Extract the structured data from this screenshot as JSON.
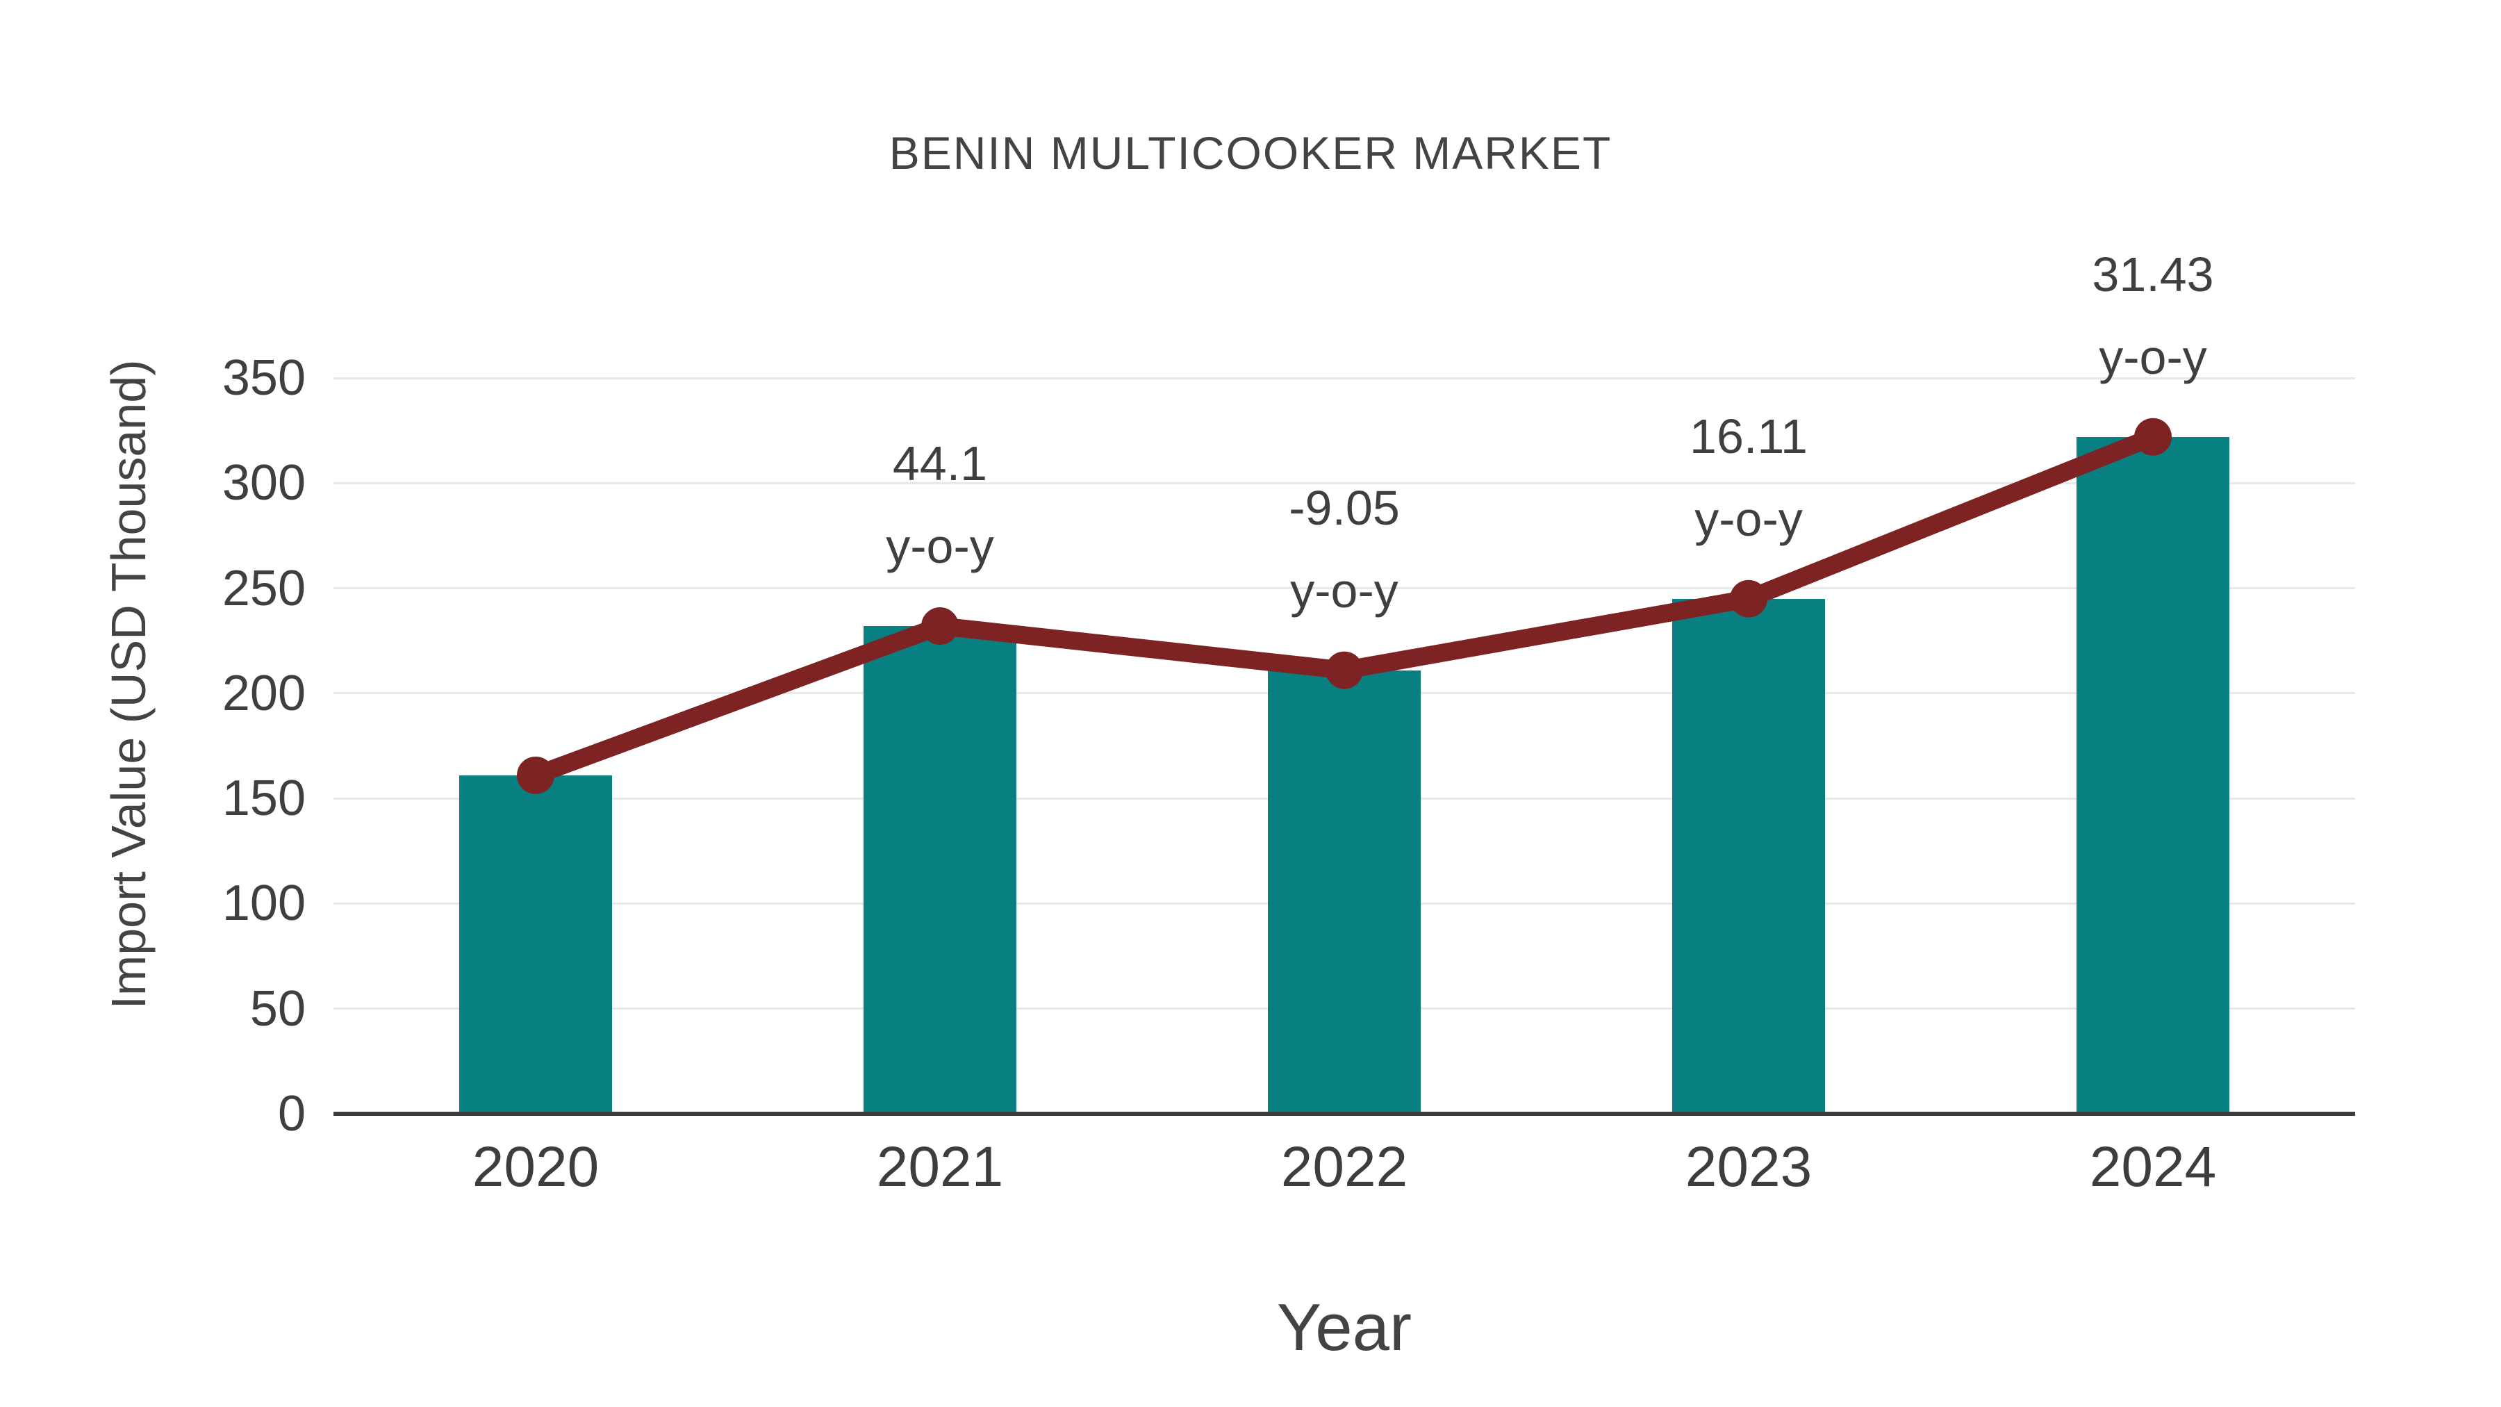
{
  "page": {
    "background_color": "#ffffff"
  },
  "chart_data": {
    "type": "bar",
    "title": "BENIN MULTICOOKER MARKET",
    "xlabel": "Year",
    "ylabel": "Import Value (USD Thousand)",
    "categories": [
      "2020",
      "2021",
      "2022",
      "2023",
      "2024"
    ],
    "series": [
      {
        "name": "Import Value (USD Thousand)",
        "type": "bar",
        "values": [
          161,
          232,
          211,
          245,
          322
        ],
        "color": "#088081"
      },
      {
        "name": "Import Value trend line",
        "type": "line",
        "values": [
          161,
          232,
          211,
          245,
          322
        ],
        "color": "#7d2323",
        "marker": "circle"
      }
    ],
    "annotations": [
      {
        "category": "2021",
        "value_label": "44.1",
        "suffix": "y-o-y"
      },
      {
        "category": "2022",
        "value_label": "-9.05",
        "suffix": "y-o-y"
      },
      {
        "category": "2023",
        "value_label": "16.11",
        "suffix": "y-o-y"
      },
      {
        "category": "2024",
        "value_label": "31.43",
        "suffix": "y-o-y"
      }
    ],
    "ylim": [
      0,
      350
    ],
    "yticks": [
      0,
      50,
      100,
      150,
      200,
      250,
      300,
      350
    ],
    "grid": true,
    "legend_position": "none",
    "colors": {
      "bar": "#088081",
      "line": "#7d2323",
      "text": "#3f3f3f",
      "grid": "#e8e8e8",
      "axis": "#3d3d3d"
    }
  }
}
